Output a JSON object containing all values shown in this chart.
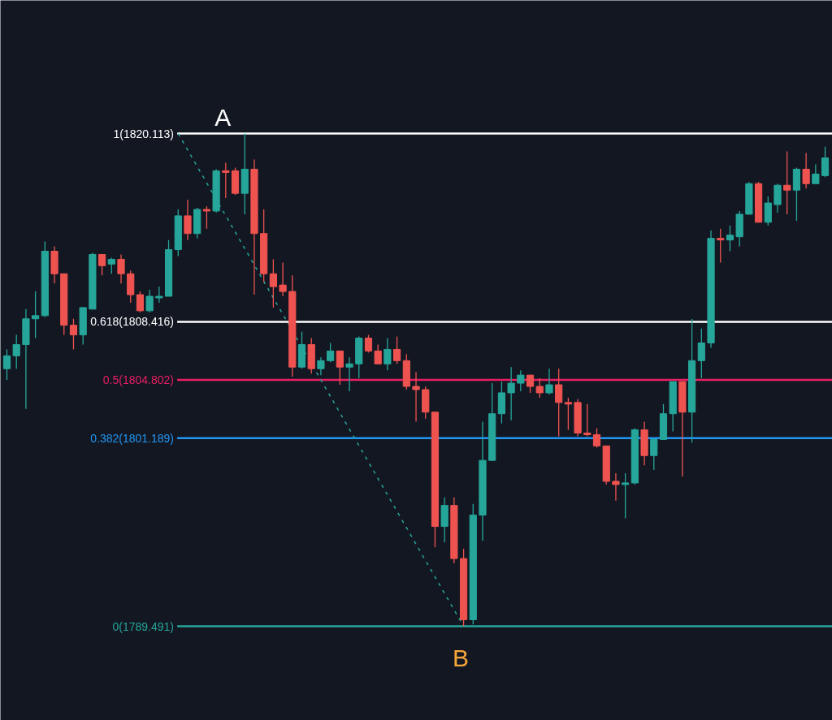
{
  "chart_data": {
    "type": "candlestick",
    "ylim": [
      1783.64,
      1828.39
    ],
    "tick_labels": false,
    "categories": [
      null,
      null,
      null,
      null,
      null,
      null,
      null,
      null,
      null,
      null,
      null,
      null,
      null,
      null,
      null,
      null,
      null,
      null,
      null,
      null,
      null,
      null,
      null,
      null,
      null,
      null,
      null,
      null,
      null,
      null,
      null,
      null,
      null,
      null,
      null,
      null,
      null,
      null,
      null,
      null,
      null,
      null,
      null,
      null,
      null,
      null,
      null,
      null,
      null,
      null,
      null,
      null,
      null,
      null,
      null,
      null,
      null,
      null,
      null,
      null,
      null,
      null,
      null,
      null,
      null,
      null,
      null,
      null,
      null,
      null,
      null,
      null,
      null,
      null,
      null,
      null,
      null,
      null,
      null,
      null,
      null,
      null,
      null,
      null,
      null,
      null,
      null
    ],
    "ohlc": [
      [
        1805.5,
        1806.7,
        1804.8,
        1806.3
      ],
      [
        1806.3,
        1807.6,
        1805.5,
        1807.0
      ],
      [
        1807.0,
        1809.2,
        1803.0,
        1808.6
      ],
      [
        1808.6,
        1810.3,
        1807.4,
        1808.8
      ],
      [
        1808.8,
        1813.4,
        1808.7,
        1812.8
      ],
      [
        1812.8,
        1813.1,
        1810.8,
        1811.4
      ],
      [
        1811.4,
        1811.4,
        1807.6,
        1808.2
      ],
      [
        1808.2,
        1808.6,
        1806.7,
        1807.6
      ],
      [
        1807.6,
        1809.3,
        1807.0,
        1809.3
      ],
      [
        1809.2,
        1812.7,
        1809.2,
        1812.6
      ],
      [
        1812.6,
        1812.6,
        1811.3,
        1811.9
      ],
      [
        1812.0,
        1812.4,
        1811.4,
        1812.3
      ],
      [
        1812.3,
        1812.6,
        1810.8,
        1811.4
      ],
      [
        1811.4,
        1811.6,
        1809.6,
        1810.1
      ],
      [
        1810.1,
        1810.3,
        1809.0,
        1809.1
      ],
      [
        1809.1,
        1810.4,
        1809.0,
        1810.0
      ],
      [
        1809.9,
        1810.6,
        1809.6,
        1810.0
      ],
      [
        1810.0,
        1813.5,
        1810.0,
        1812.9
      ],
      [
        1812.9,
        1815.4,
        1812.5,
        1815.0
      ],
      [
        1815.0,
        1816.0,
        1813.5,
        1813.9
      ],
      [
        1813.9,
        1815.5,
        1813.6,
        1815.4
      ],
      [
        1815.4,
        1815.6,
        1814.2,
        1815.3
      ],
      [
        1815.3,
        1817.9,
        1815.2,
        1817.8
      ],
      [
        1817.8,
        1818.3,
        1816.1,
        1817.7
      ],
      [
        1817.8,
        1818.0,
        1816.3,
        1816.4
      ],
      [
        1816.4,
        1820.113,
        1815.1,
        1817.9
      ],
      [
        1817.9,
        1818.5,
        1810.1,
        1813.9
      ],
      [
        1813.9,
        1815.4,
        1810.9,
        1811.4
      ],
      [
        1811.4,
        1812.3,
        1809.3,
        1810.6
      ],
      [
        1810.7,
        1812.1,
        1810.0,
        1810.3
      ],
      [
        1810.3,
        1811.3,
        1805.0,
        1805.6
      ],
      [
        1805.6,
        1807.8,
        1805.5,
        1807.0
      ],
      [
        1807.0,
        1807.4,
        1805.2,
        1805.5
      ],
      [
        1805.5,
        1806.2,
        1805.1,
        1806.0
      ],
      [
        1806.0,
        1807.1,
        1805.9,
        1806.6
      ],
      [
        1806.6,
        1806.6,
        1804.5,
        1805.6
      ],
      [
        1805.6,
        1806.2,
        1804.1,
        1805.8
      ],
      [
        1805.8,
        1807.5,
        1804.9,
        1807.4
      ],
      [
        1807.4,
        1807.6,
        1806.5,
        1806.6
      ],
      [
        1806.6,
        1807.0,
        1805.8,
        1805.8
      ],
      [
        1805.8,
        1807.4,
        1805.4,
        1806.7
      ],
      [
        1806.7,
        1807.5,
        1805.8,
        1806.0
      ],
      [
        1806.0,
        1806.4,
        1804.2,
        1804.4
      ],
      [
        1804.4,
        1805.3,
        1802.2,
        1804.2
      ],
      [
        1804.2,
        1804.4,
        1802.4,
        1802.8
      ],
      [
        1802.8,
        1802.8,
        1794.4,
        1795.7
      ],
      [
        1795.7,
        1797.5,
        1794.7,
        1797.0
      ],
      [
        1797.0,
        1797.5,
        1793.4,
        1793.7
      ],
      [
        1793.7,
        1794.3,
        1789.491,
        1789.9
      ],
      [
        1789.9,
        1797.1,
        1789.6,
        1796.4
      ],
      [
        1796.4,
        1802.2,
        1794.8,
        1799.8
      ],
      [
        1799.8,
        1804.6,
        1799.8,
        1802.7
      ],
      [
        1802.7,
        1804.7,
        1802.1,
        1804.0
      ],
      [
        1804.0,
        1805.6,
        1802.3,
        1804.6
      ],
      [
        1804.6,
        1805.4,
        1804.1,
        1805.1
      ],
      [
        1805.1,
        1805.1,
        1804.0,
        1804.4
      ],
      [
        1804.4,
        1804.9,
        1803.7,
        1804.0
      ],
      [
        1804.0,
        1805.5,
        1803.9,
        1804.5
      ],
      [
        1804.5,
        1805.5,
        1801.3,
        1803.4
      ],
      [
        1803.4,
        1803.7,
        1801.7,
        1803.3
      ],
      [
        1803.4,
        1803.6,
        1801.3,
        1801.5
      ],
      [
        1801.5,
        1803.3,
        1801.3,
        1801.4
      ],
      [
        1801.4,
        1801.8,
        1800.6,
        1800.7
      ],
      [
        1800.7,
        1800.7,
        1798.3,
        1798.5
      ],
      [
        1798.5,
        1799.0,
        1797.3,
        1798.3
      ],
      [
        1798.3,
        1799.0,
        1796.2,
        1798.4
      ],
      [
        1798.4,
        1801.8,
        1798.3,
        1801.7
      ],
      [
        1801.7,
        1802.2,
        1799.5,
        1800.1
      ],
      [
        1800.1,
        1801.2,
        1799.2,
        1801.1
      ],
      [
        1801.1,
        1803.3,
        1801.1,
        1802.7
      ],
      [
        1802.7,
        1804.7,
        1801.6,
        1804.7
      ],
      [
        1804.7,
        1804.7,
        1798.8,
        1802.8
      ],
      [
        1802.8,
        1808.6,
        1800.9,
        1806.0
      ],
      [
        1806.0,
        1808.0,
        1804.9,
        1807.1
      ],
      [
        1807.1,
        1814.1,
        1806.8,
        1813.6
      ],
      [
        1813.6,
        1814.2,
        1812.1,
        1813.5
      ],
      [
        1813.5,
        1814.4,
        1812.8,
        1813.8
      ],
      [
        1813.7,
        1815.3,
        1813.1,
        1815.1
      ],
      [
        1815.1,
        1817.1,
        1815.1,
        1817.0
      ],
      [
        1817.0,
        1817.1,
        1814.6,
        1814.6
      ],
      [
        1814.6,
        1816.2,
        1814.4,
        1815.8
      ],
      [
        1815.7,
        1817.0,
        1815.2,
        1816.9
      ],
      [
        1816.9,
        1819.0,
        1815.1,
        1816.6
      ],
      [
        1816.6,
        1818.0,
        1814.7,
        1817.9
      ],
      [
        1817.9,
        1818.9,
        1816.7,
        1817.0
      ],
      [
        1817.0,
        1818.2,
        1817.0,
        1817.6
      ],
      [
        1817.5,
        1819.3,
        1817.4,
        1818.6
      ]
    ],
    "colors": [
      "#26a69a",
      "#26a69a",
      "#26a69a",
      "#26a69a",
      "#26a69a",
      "#ef5350",
      "#ef5350",
      "#ef5350",
      "#26a69a",
      "#26a69a",
      "#ef5350",
      "#26a69a",
      "#ef5350",
      "#ef5350",
      "#ef5350",
      "#26a69a",
      "#26a69a",
      "#26a69a",
      "#26a69a",
      "#ef5350",
      "#26a69a",
      "#ef5350",
      "#26a69a",
      "#ef5350",
      "#ef5350",
      "#26a69a",
      "#ef5350",
      "#ef5350",
      "#ef5350",
      "#ef5350",
      "#ef5350",
      "#26a69a",
      "#ef5350",
      "#26a69a",
      "#26a69a",
      "#ef5350",
      "#26a69a",
      "#26a69a",
      "#ef5350",
      "#ef5350",
      "#26a69a",
      "#ef5350",
      "#ef5350",
      "#ef5350",
      "#ef5350",
      "#ef5350",
      "#26a69a",
      "#ef5350",
      "#ef5350",
      "#26a69a",
      "#26a69a",
      "#26a69a",
      "#26a69a",
      "#26a69a",
      "#26a69a",
      "#ef5350",
      "#ef5350",
      "#26a69a",
      "#ef5350",
      "#ef5350",
      "#ef5350",
      "#ef5350",
      "#ef5350",
      "#ef5350",
      "#ef5350",
      "#26a69a",
      "#26a69a",
      "#ef5350",
      "#26a69a",
      "#26a69a",
      "#26a69a",
      "#ef5350",
      "#26a69a",
      "#26a69a",
      "#26a69a",
      "#ef5350",
      "#26a69a",
      "#26a69a",
      "#26a69a",
      "#ef5350",
      "#26a69a",
      "#26a69a",
      "#ef5350",
      "#26a69a",
      "#ef5350",
      "#26a69a",
      "#26a69a"
    ],
    "series": [
      {
        "type": "line",
        "color": "#26a69a",
        "line_style": "dashed",
        "values": [
          null,
          null,
          null,
          null,
          null,
          null,
          null,
          null,
          null,
          null,
          null,
          null,
          null,
          null,
          null,
          null,
          null,
          null,
          1820.113,
          null,
          null,
          null,
          null,
          null,
          null,
          null,
          null,
          null,
          null,
          null,
          null,
          null,
          null,
          null,
          null,
          null,
          null,
          null,
          null,
          null,
          null,
          null,
          null,
          null,
          null,
          null,
          null,
          null,
          1789.491,
          null,
          null,
          null,
          null,
          null,
          null,
          null,
          null,
          null,
          null,
          null,
          null,
          null,
          null,
          null,
          null,
          null,
          null,
          null,
          null,
          null,
          null,
          null,
          null,
          null,
          null,
          null,
          null,
          null,
          null,
          null,
          null,
          null,
          null,
          null,
          null,
          null,
          null
        ]
      }
    ],
    "ref_lines": [
      {
        "axis": "y",
        "value": 1820.113,
        "label": "1(1820.113)",
        "color": "#ffffff"
      },
      {
        "axis": "y",
        "value": 1808.416,
        "label": "0.618(1808.416)",
        "color": "#ffffff"
      },
      {
        "axis": "y",
        "value": 1804.802,
        "label": "0.5(1804.802)",
        "color": "#e91e63"
      },
      {
        "axis": "y",
        "value": 1801.189,
        "label": "0.382(1801.189)",
        "color": "#2196f3"
      },
      {
        "axis": "y",
        "value": 1789.491,
        "label": "0(1789.491)",
        "color": "#26a69a"
      }
    ],
    "annotations": [
      {
        "text": "A",
        "y": 1820.113
      },
      {
        "text": "B",
        "y": 1789.491
      }
    ]
  }
}
